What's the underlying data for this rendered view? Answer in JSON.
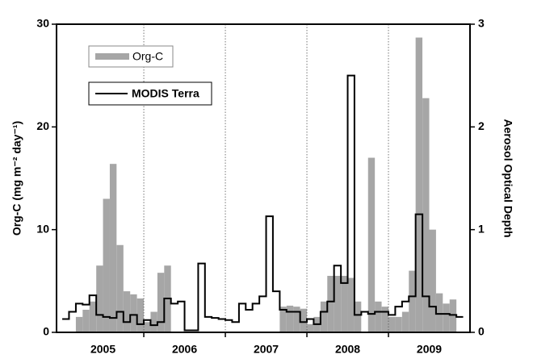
{
  "chart_data": {
    "type": "bar_line",
    "ylabel": "Org-C (mg m⁻² day⁻¹)",
    "y2label": "Aerosol Optical Depth",
    "xlim": [
      2004.93,
      2010.0
    ],
    "xticks": [
      {
        "value": 2005.5,
        "label": "2005"
      },
      {
        "value": 2006.5,
        "label": "2006"
      },
      {
        "value": 2007.5,
        "label": "2007"
      },
      {
        "value": 2008.5,
        "label": "2008"
      },
      {
        "value": 2009.5,
        "label": "2009"
      }
    ],
    "year_lines": [
      2006,
      2007,
      2008,
      2009
    ],
    "ylim": [
      0,
      30
    ],
    "yticks": [
      0,
      10,
      20,
      30
    ],
    "y2lim": [
      0,
      3
    ],
    "y2ticks": [
      0,
      1,
      2,
      3
    ],
    "series": [
      {
        "name": "Org-C",
        "color": "#a6a6a6",
        "type": "bar",
        "x": [
          2005.167,
          2005.25,
          2005.333,
          2005.417,
          2005.5,
          2005.583,
          2005.667,
          2005.75,
          2005.833,
          2005.917,
          2006.0,
          2006.083,
          2006.167,
          2006.25,
          2007.667,
          2007.75,
          2007.833,
          2007.917,
          2008.0,
          2008.083,
          2008.167,
          2008.25,
          2008.333,
          2008.417,
          2008.5,
          2008.583,
          2008.75,
          2008.833,
          2008.917,
          2009.0,
          2009.083,
          2009.167,
          2009.25,
          2009.333,
          2009.417,
          2009.5,
          2009.583,
          2009.667,
          2009.75
        ],
        "values": [
          1.5,
          2.2,
          3,
          6.5,
          13,
          16.4,
          8.5,
          4,
          3.7,
          3.3,
          1,
          2,
          5.8,
          6.5,
          2.5,
          2.6,
          2.5,
          2.3,
          0.8,
          1.5,
          3,
          5.5,
          5.5,
          5.5,
          5.3,
          3,
          17,
          3,
          2.5,
          1.5,
          1.5,
          2,
          6,
          28.7,
          22.8,
          10,
          3.8,
          2.8,
          3.2
        ]
      },
      {
        "name": "MODIS Terra",
        "color": "#000000",
        "type": "line",
        "axis": "y2",
        "x": [
          2005.0,
          2005.083,
          2005.167,
          2005.25,
          2005.333,
          2005.417,
          2005.5,
          2005.583,
          2005.667,
          2005.75,
          2005.833,
          2005.917,
          2006.0,
          2006.083,
          2006.167,
          2006.25,
          2006.333,
          2006.417,
          2006.5,
          2006.583,
          2006.667,
          2006.75,
          2006.833,
          2006.917,
          2007.0,
          2007.083,
          2007.167,
          2007.25,
          2007.333,
          2007.417,
          2007.5,
          2007.583,
          2007.667,
          2007.75,
          2007.833,
          2007.917,
          2008.0,
          2008.083,
          2008.167,
          2008.25,
          2008.333,
          2008.417,
          2008.5,
          2008.583,
          2008.667,
          2008.75,
          2008.833,
          2008.917,
          2009.0,
          2009.083,
          2009.167,
          2009.25,
          2009.333,
          2009.417,
          2009.5,
          2009.583,
          2009.667,
          2009.75,
          2009.833
        ],
        "values": [
          0.13,
          0.2,
          0.28,
          0.27,
          0.36,
          0.17,
          0.15,
          0.14,
          0.2,
          0.1,
          0.17,
          0.08,
          0.12,
          0.07,
          0.1,
          0.33,
          0.28,
          0.3,
          0.02,
          0.02,
          0.67,
          0.15,
          0.14,
          0.13,
          0.12,
          0.1,
          0.28,
          0.22,
          0.28,
          0.35,
          1.13,
          0.4,
          0.22,
          0.2,
          0.2,
          0.1,
          0.13,
          0.08,
          0.2,
          0.3,
          0.65,
          0.48,
          2.5,
          0.17,
          0.2,
          0.18,
          0.2,
          0.2,
          0.17,
          0.25,
          0.3,
          0.35,
          1.15,
          0.35,
          0.25,
          0.18,
          0.18,
          0.17,
          0.15
        ]
      }
    ]
  }
}
